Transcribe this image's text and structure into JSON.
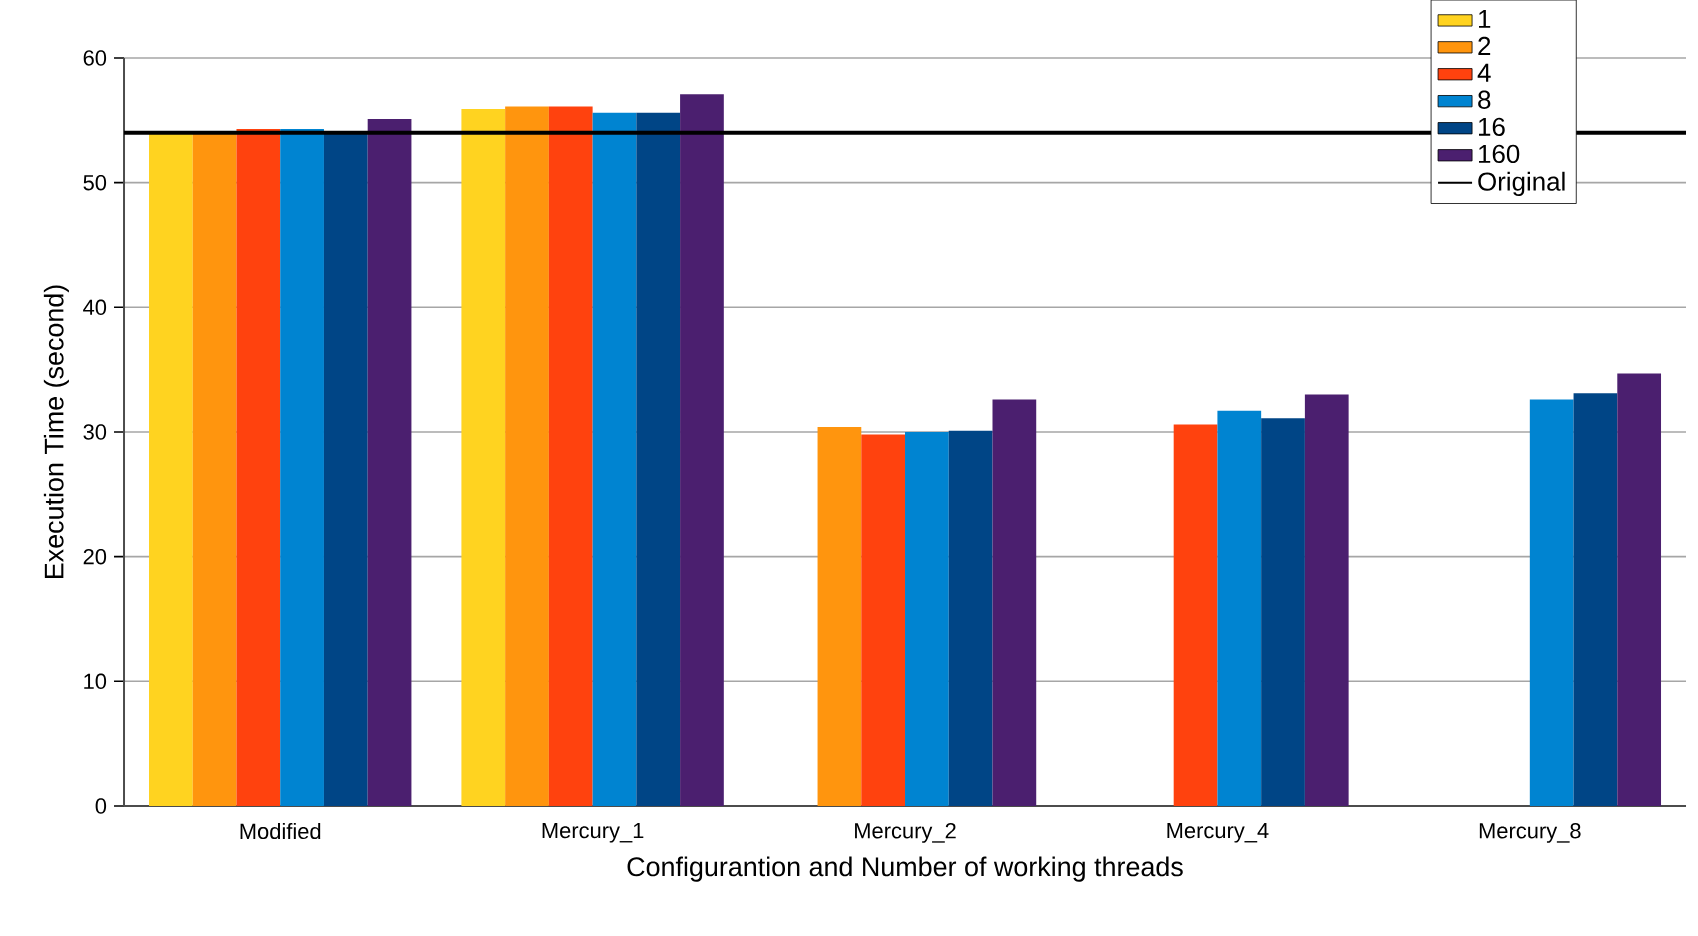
{
  "chart_data": {
    "type": "bar",
    "xlabel": "Configurantion and Number of working threads",
    "ylabel": "Execution Time (second)",
    "categories": [
      "Modified",
      "Mercury_1",
      "Mercury_2",
      "Mercury_4",
      "Mercury_8"
    ],
    "series": [
      {
        "name": "1",
        "color": "#ffd320",
        "values": [
          53.9,
          55.9,
          null,
          null,
          null
        ]
      },
      {
        "name": "2",
        "color": "#ff950e",
        "values": [
          53.9,
          56.1,
          30.4,
          null,
          null
        ]
      },
      {
        "name": "4",
        "color": "#ff420e",
        "values": [
          54.3,
          56.1,
          29.8,
          30.6,
          null
        ]
      },
      {
        "name": "8",
        "color": "#0084d1",
        "values": [
          54.3,
          55.6,
          30.0,
          31.7,
          32.6
        ]
      },
      {
        "name": "16",
        "color": "#004586",
        "values": [
          54.0,
          55.6,
          30.1,
          31.1,
          33.1
        ]
      },
      {
        "name": "160",
        "color": "#4b1f6f",
        "values": [
          55.1,
          57.1,
          32.6,
          33.0,
          34.7
        ]
      }
    ],
    "ref_lines": [
      {
        "axis": "y",
        "value": 54,
        "label": "Original",
        "color": "#000000"
      }
    ],
    "ylim": [
      0,
      60
    ],
    "yticks": [
      0,
      10,
      20,
      30,
      40,
      50,
      60
    ],
    "grid": "y",
    "legend": "top right"
  }
}
